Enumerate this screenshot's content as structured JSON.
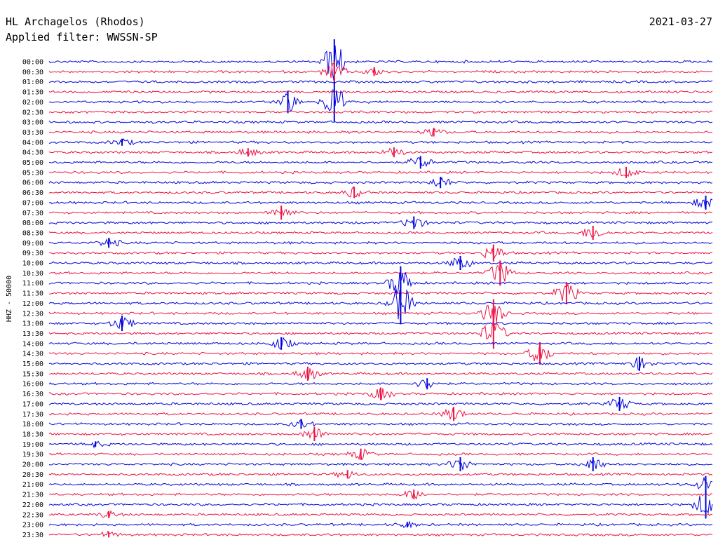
{
  "station": "HL Archagelos (Rhodos)",
  "date": "2021-03-27",
  "filter_text": "Applied filter: WWSSN-SP",
  "colors": {
    "even": "#0000dd",
    "odd": "#ee1144",
    "background": "#ffffff"
  },
  "chart_data": {
    "type": "line",
    "title": "HL Archagelos (Rhodos)",
    "ylabel": "HHZ - 50000",
    "xlabel": "",
    "grid": false,
    "row_labels": [
      "00:00",
      "00:30",
      "01:00",
      "01:30",
      "02:00",
      "02:30",
      "03:00",
      "03:30",
      "04:00",
      "04:30",
      "05:00",
      "05:30",
      "06:00",
      "06:30",
      "07:00",
      "07:30",
      "08:00",
      "08:30",
      "09:00",
      "09:30",
      "10:00",
      "10:30",
      "11:00",
      "11:30",
      "12:00",
      "12:30",
      "13:00",
      "13:30",
      "14:00",
      "14:30",
      "15:00",
      "15:30",
      "16:00",
      "16:30",
      "17:00",
      "17:30",
      "18:00",
      "18:30",
      "19:00",
      "19:30",
      "20:00",
      "20:30",
      "21:00",
      "21:30",
      "22:00",
      "22:30",
      "23:00",
      "23:30"
    ],
    "events": [
      {
        "row": 0,
        "x": 0.43,
        "amp": 3.2
      },
      {
        "row": 1,
        "x": 0.43,
        "amp": 1.4
      },
      {
        "row": 1,
        "x": 0.49,
        "amp": 0.6
      },
      {
        "row": 4,
        "x": 0.36,
        "amp": 1.6
      },
      {
        "row": 4,
        "x": 0.43,
        "amp": 2.8
      },
      {
        "row": 7,
        "x": 0.58,
        "amp": 0.6
      },
      {
        "row": 8,
        "x": 0.11,
        "amp": 0.5
      },
      {
        "row": 9,
        "x": 0.3,
        "amp": 0.6
      },
      {
        "row": 9,
        "x": 0.52,
        "amp": 0.7
      },
      {
        "row": 10,
        "x": 0.56,
        "amp": 0.9
      },
      {
        "row": 11,
        "x": 0.87,
        "amp": 0.8
      },
      {
        "row": 12,
        "x": 0.59,
        "amp": 0.8
      },
      {
        "row": 13,
        "x": 0.46,
        "amp": 0.8
      },
      {
        "row": 14,
        "x": 0.99,
        "amp": 1.0
      },
      {
        "row": 15,
        "x": 0.35,
        "amp": 1.0
      },
      {
        "row": 16,
        "x": 0.55,
        "amp": 0.9
      },
      {
        "row": 17,
        "x": 0.82,
        "amp": 1.0
      },
      {
        "row": 18,
        "x": 0.09,
        "amp": 0.7
      },
      {
        "row": 19,
        "x": 0.67,
        "amp": 1.2
      },
      {
        "row": 20,
        "x": 0.62,
        "amp": 1.0
      },
      {
        "row": 21,
        "x": 0.68,
        "amp": 1.8
      },
      {
        "row": 22,
        "x": 0.53,
        "amp": 2.4
      },
      {
        "row": 23,
        "x": 0.78,
        "amp": 1.6
      },
      {
        "row": 24,
        "x": 0.53,
        "amp": 3.0
      },
      {
        "row": 25,
        "x": 0.67,
        "amp": 2.0
      },
      {
        "row": 26,
        "x": 0.11,
        "amp": 1.1
      },
      {
        "row": 27,
        "x": 0.67,
        "amp": 2.2
      },
      {
        "row": 28,
        "x": 0.35,
        "amp": 0.9
      },
      {
        "row": 29,
        "x": 0.74,
        "amp": 1.6
      },
      {
        "row": 30,
        "x": 0.89,
        "amp": 1.0
      },
      {
        "row": 31,
        "x": 0.39,
        "amp": 1.0
      },
      {
        "row": 32,
        "x": 0.57,
        "amp": 0.8
      },
      {
        "row": 33,
        "x": 0.5,
        "amp": 0.9
      },
      {
        "row": 34,
        "x": 0.86,
        "amp": 1.0
      },
      {
        "row": 35,
        "x": 0.61,
        "amp": 1.0
      },
      {
        "row": 36,
        "x": 0.38,
        "amp": 0.7
      },
      {
        "row": 37,
        "x": 0.4,
        "amp": 1.0
      },
      {
        "row": 38,
        "x": 0.07,
        "amp": 0.4
      },
      {
        "row": 39,
        "x": 0.47,
        "amp": 0.8
      },
      {
        "row": 40,
        "x": 0.62,
        "amp": 1.0
      },
      {
        "row": 40,
        "x": 0.82,
        "amp": 1.0
      },
      {
        "row": 41,
        "x": 0.45,
        "amp": 0.6
      },
      {
        "row": 42,
        "x": 0.99,
        "amp": 1.2
      },
      {
        "row": 43,
        "x": 0.55,
        "amp": 0.7
      },
      {
        "row": 44,
        "x": 0.99,
        "amp": 2.0
      },
      {
        "row": 45,
        "x": 0.09,
        "amp": 0.5
      },
      {
        "row": 46,
        "x": 0.54,
        "amp": 0.4
      },
      {
        "row": 47,
        "x": 0.09,
        "amp": 0.4
      }
    ]
  }
}
